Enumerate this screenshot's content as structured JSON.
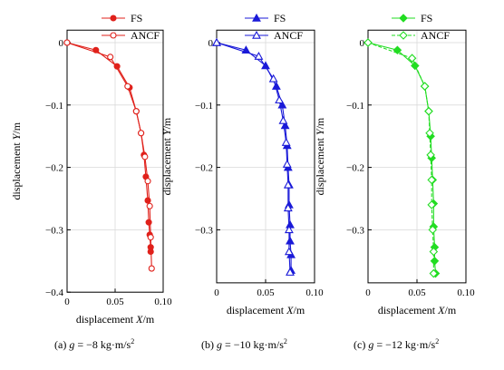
{
  "chart_data": [
    {
      "type": "line",
      "panel_caption": "(a) g = −8 kg·m/s²",
      "caption_prefix": "(a) ",
      "caption_g": "g",
      "caption_eq": " = −8 kg·m/s",
      "caption_sup": "2",
      "xlabel_prefix": "displacement ",
      "xlabel_var": "X",
      "xlabel_unit": "/m",
      "ylabel_prefix": "displacement ",
      "ylabel_var": "Y",
      "ylabel_unit": "/m",
      "xlim": [
        0,
        0.1
      ],
      "ylim": [
        -0.4,
        0.02
      ],
      "xticks": [
        0,
        0.05,
        0.1
      ],
      "xtick_labels": [
        "0",
        "0.05",
        "0.10"
      ],
      "yticks": [
        0,
        -0.1,
        -0.2,
        -0.3,
        -0.4
      ],
      "ytick_labels": [
        "0",
        "−0.1",
        "−0.2",
        "−0.3",
        "−0.4"
      ],
      "grid": true,
      "legend_position": "top-right",
      "color": "#e0211b",
      "series": [
        {
          "name": "FS",
          "marker": "filled-circle",
          "line": "solid",
          "x": [
            0,
            0.03,
            0.052,
            0.065,
            0.072,
            0.077,
            0.08,
            0.082,
            0.084,
            0.085,
            0.086,
            0.087,
            0.087
          ],
          "y": [
            0,
            -0.012,
            -0.038,
            -0.072,
            -0.11,
            -0.145,
            -0.18,
            -0.215,
            -0.253,
            -0.288,
            -0.308,
            -0.328,
            -0.335
          ]
        },
        {
          "name": "ANCF",
          "marker": "open-circle",
          "line": "solid",
          "x": [
            0,
            0.045,
            0.063,
            0.072,
            0.077,
            0.081,
            0.084,
            0.086,
            0.087,
            0.088
          ],
          "y": [
            0,
            -0.023,
            -0.07,
            -0.11,
            -0.145,
            -0.183,
            -0.222,
            -0.262,
            -0.312,
            -0.362
          ]
        }
      ]
    },
    {
      "type": "line",
      "panel_caption": "(b) g = −10 kg·m/s²",
      "caption_prefix": "(b) ",
      "caption_g": "g",
      "caption_eq": " = −10 kg·m/s",
      "caption_sup": "2",
      "xlabel_prefix": "displacement ",
      "xlabel_var": "X",
      "xlabel_unit": "/m",
      "ylabel_prefix": "displacement ",
      "ylabel_var": "Y",
      "ylabel_unit": "/m",
      "xlim": [
        0,
        0.1
      ],
      "ylim": [
        -0.385,
        0.02
      ],
      "xticks": [
        0,
        0.05,
        0.1
      ],
      "xtick_labels": [
        "0",
        "0.05",
        "0.10"
      ],
      "yticks": [
        0,
        -0.1,
        -0.2,
        -0.3
      ],
      "ytick_labels": [
        "0",
        "−0.1",
        "−0.2",
        "−0.3"
      ],
      "grid": true,
      "legend_position": "top-right",
      "color": "#1a1ad8",
      "series": [
        {
          "name": "FS",
          "marker": "filled-triangle",
          "line": "solid",
          "x": [
            0,
            0.03,
            0.05,
            0.061,
            0.067,
            0.07,
            0.072,
            0.073,
            0.074,
            0.074,
            0.075,
            0.075,
            0.076,
            0.076
          ],
          "y": [
            0,
            -0.012,
            -0.037,
            -0.07,
            -0.1,
            -0.133,
            -0.165,
            -0.2,
            -0.228,
            -0.26,
            -0.292,
            -0.318,
            -0.34,
            -0.365
          ]
        },
        {
          "name": "ANCF",
          "marker": "open-triangle",
          "line": "solid",
          "x": [
            0,
            0.043,
            0.058,
            0.064,
            0.068,
            0.071,
            0.072,
            0.073,
            0.073,
            0.074,
            0.074,
            0.075
          ],
          "y": [
            0,
            -0.022,
            -0.058,
            -0.092,
            -0.125,
            -0.16,
            -0.195,
            -0.228,
            -0.265,
            -0.3,
            -0.335,
            -0.368
          ]
        }
      ]
    },
    {
      "type": "line",
      "panel_caption": "(c) g = −12 kg·m/s²",
      "caption_prefix": "(c) ",
      "caption_g": "g",
      "caption_eq": " = −12 kg·m/s",
      "caption_sup": "2",
      "xlabel_prefix": "displacement ",
      "xlabel_var": "X",
      "xlabel_unit": "/m",
      "ylabel_prefix": "displacement ",
      "ylabel_var": "Y",
      "ylabel_unit": "/m",
      "xlim": [
        0,
        0.1
      ],
      "ylim": [
        -0.385,
        0.02
      ],
      "xticks": [
        0,
        0.05,
        0.1
      ],
      "xtick_labels": [
        "0",
        "0.05",
        "0.10"
      ],
      "yticks": [
        0,
        -0.1,
        -0.2,
        -0.3
      ],
      "ytick_labels": [
        "0",
        "−0.1",
        "−0.2",
        "−0.3"
      ],
      "grid": true,
      "legend_position": "top-right",
      "color": "#22dd22",
      "series": [
        {
          "name": "FS",
          "marker": "filled-diamond",
          "line": "solid",
          "x": [
            0,
            0.03,
            0.048,
            0.058,
            0.062,
            0.064,
            0.065,
            0.066,
            0.067,
            0.067,
            0.068,
            0.068,
            0.069
          ],
          "y": [
            0,
            -0.012,
            -0.037,
            -0.07,
            -0.11,
            -0.15,
            -0.185,
            -0.22,
            -0.258,
            -0.295,
            -0.328,
            -0.35,
            -0.37
          ]
        },
        {
          "name": "ANCF",
          "marker": "open-diamond",
          "line": "dashed",
          "x": [
            0,
            0.045,
            0.058,
            0.062,
            0.063,
            0.064,
            0.065,
            0.065,
            0.066,
            0.067,
            0.067
          ],
          "y": [
            0,
            -0.025,
            -0.07,
            -0.11,
            -0.145,
            -0.18,
            -0.22,
            -0.26,
            -0.3,
            -0.335,
            -0.37
          ]
        }
      ]
    }
  ]
}
